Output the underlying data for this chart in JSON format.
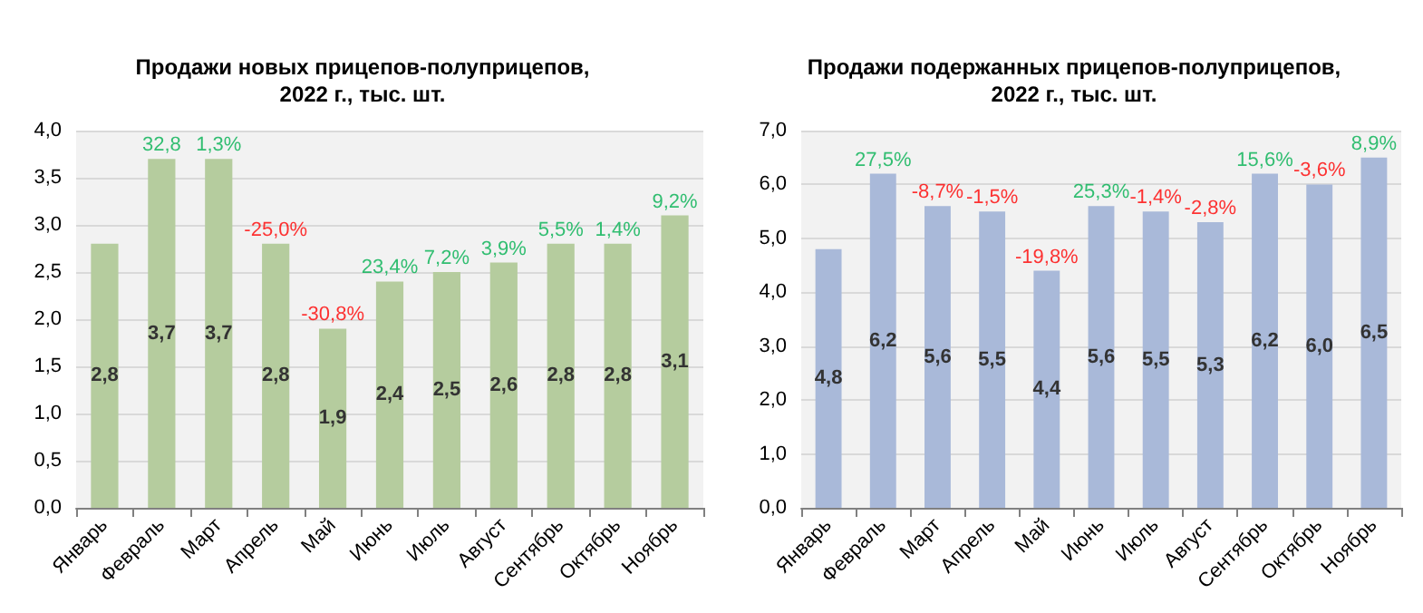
{
  "chart_data": [
    {
      "type": "bar",
      "title": "Продажи новых прицепов-полуприцепов,\n2022 г., тыс. шт.",
      "categories": [
        "Январь",
        "Февраль",
        "Март",
        "Апрель",
        "Май",
        "Июнь",
        "Июль",
        "Август",
        "Сентябрь",
        "Октябрь",
        "Ноябрь"
      ],
      "values": [
        2.8,
        3.7,
        3.7,
        2.8,
        1.9,
        2.4,
        2.5,
        2.6,
        2.8,
        2.8,
        3.1
      ],
      "value_labels": [
        "2,8",
        "3,7",
        "3,7",
        "2,8",
        "1,9",
        "2,4",
        "2,5",
        "2,6",
        "2,8",
        "2,8",
        "3,1"
      ],
      "color": "#b5cc9e",
      "ylim": [
        0,
        4
      ],
      "yticks": [
        {
          "value": 0,
          "label": "0,0"
        },
        {
          "value": 0.5,
          "label": "0,5"
        },
        {
          "value": 1,
          "label": "1,0"
        },
        {
          "value": 1.5,
          "label": "1,5"
        },
        {
          "value": 2,
          "label": "2,0"
        },
        {
          "value": 2.5,
          "label": "2,5"
        },
        {
          "value": 3,
          "label": "3,0"
        },
        {
          "value": 3.5,
          "label": "3,5"
        },
        {
          "value": 4,
          "label": "4,0"
        }
      ],
      "grid": "y",
      "annotations": [
        {
          "text": "32,8",
          "x": "Февраль",
          "y": 3.7
        },
        {
          "text": "1,3%",
          "x": "Март",
          "y": 3.7
        },
        {
          "text": "-25,0%",
          "x": "Апрель",
          "y": 2.8
        },
        {
          "text": "-30,8%",
          "x": "Май",
          "y": 1.9
        },
        {
          "text": "23,4%",
          "x": "Июнь",
          "y": 2.4
        },
        {
          "text": "7,2%",
          "x": "Июль",
          "y": 2.5
        },
        {
          "text": "3,9%",
          "x": "Август",
          "y": 2.6
        },
        {
          "text": "5,5%",
          "x": "Сентябрь",
          "y": 2.8
        },
        {
          "text": "1,4%",
          "x": "Октябрь",
          "y": 2.8
        },
        {
          "text": "9,2%",
          "x": "Ноябрь",
          "y": 3.1
        }
      ]
    },
    {
      "type": "bar",
      "title": "Продажи подержанных прицепов-полуприцепов,\n2022 г., тыс. шт.",
      "categories": [
        "Январь",
        "Февраль",
        "Март",
        "Апрель",
        "Май",
        "Июнь",
        "Июль",
        "Август",
        "Сентябрь",
        "Октябрь",
        "Ноябрь"
      ],
      "values": [
        4.8,
        6.2,
        5.6,
        5.5,
        4.4,
        5.6,
        5.5,
        5.3,
        6.2,
        6.0,
        6.5
      ],
      "value_labels": [
        "4,8",
        "6,2",
        "5,6",
        "5,5",
        "4,4",
        "5,6",
        "5,5",
        "5,3",
        "6,2",
        "6,0",
        "6,5"
      ],
      "color": "#a9b9d9",
      "ylim": [
        0,
        7
      ],
      "yticks": [
        {
          "value": 0,
          "label": "0,0"
        },
        {
          "value": 1,
          "label": "1,0"
        },
        {
          "value": 2,
          "label": "2,0"
        },
        {
          "value": 3,
          "label": "3,0"
        },
        {
          "value": 4,
          "label": "4,0"
        },
        {
          "value": 5,
          "label": "5,0"
        },
        {
          "value": 6,
          "label": "6,0"
        },
        {
          "value": 7,
          "label": "7,0"
        }
      ],
      "grid": "y",
      "annotations": [
        {
          "text": "27,5%",
          "x": "Февраль",
          "y": 6.2
        },
        {
          "text": "-8,7%",
          "x": "Март",
          "y": 5.6
        },
        {
          "text": "-1,5%",
          "x": "Апрель",
          "y": 5.5
        },
        {
          "text": "-19,8%",
          "x": "Май",
          "y": 4.4
        },
        {
          "text": "25,3%",
          "x": "Июнь",
          "y": 5.6
        },
        {
          "text": "-1,4%",
          "x": "Июль",
          "y": 5.5
        },
        {
          "text": "-2,8%",
          "x": "Август",
          "y": 5.3
        },
        {
          "text": "15,6%",
          "x": "Сентябрь",
          "y": 6.2
        },
        {
          "text": "-3,6%",
          "x": "Октябрь",
          "y": 6.0
        },
        {
          "text": "8,9%",
          "x": "Ноябрь",
          "y": 6.5
        }
      ]
    }
  ]
}
